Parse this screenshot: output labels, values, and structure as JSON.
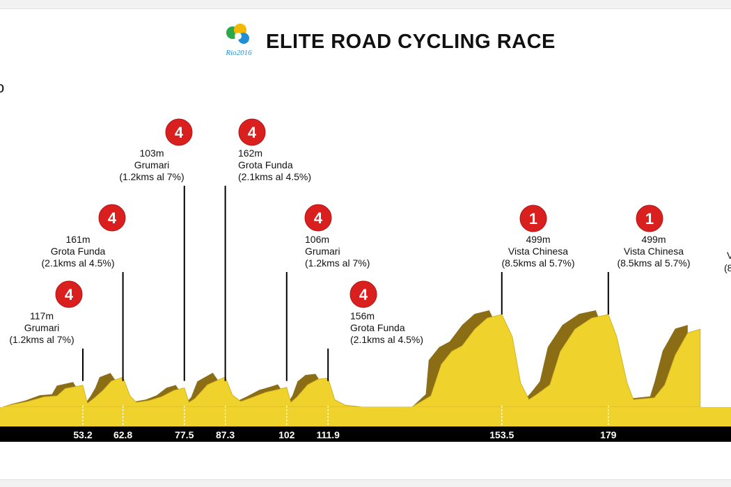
{
  "title": "ELITE ROAD CYCLING RACE",
  "logo": {
    "text": "Rio2016",
    "icon": "rio-2016-olympic-logo"
  },
  "side_fragment": "o",
  "colors": {
    "profile_fill": "#f0d22c",
    "climb_face": "#8a6d14",
    "category_badge": "#d9201f",
    "axis_bar": "#000000"
  },
  "chart_data": {
    "type": "area",
    "xlabel": "",
    "ylabel": "",
    "x_unit": "km",
    "y_unit": "m",
    "km_markers": [
      53.2,
      62.8,
      77.5,
      87.3,
      102,
      111.9,
      153.5,
      179
    ],
    "km_labels": [
      "53.2",
      "62.8",
      "77.5",
      "87.3",
      "102",
      "111.9",
      "153.5",
      "179"
    ],
    "profile": [
      {
        "km": 34,
        "alt": 0
      },
      {
        "km": 36,
        "alt": 12
      },
      {
        "km": 40,
        "alt": 30
      },
      {
        "km": 44,
        "alt": 55
      },
      {
        "km": 47,
        "alt": 60
      },
      {
        "km": 49,
        "alt": 100
      },
      {
        "km": 53.2,
        "alt": 117
      },
      {
        "km": 54.3,
        "alt": 20
      },
      {
        "km": 56,
        "alt": 50
      },
      {
        "km": 58,
        "alt": 90
      },
      {
        "km": 60,
        "alt": 140
      },
      {
        "km": 62.8,
        "alt": 161
      },
      {
        "km": 64.5,
        "alt": 60
      },
      {
        "km": 66,
        "alt": 25
      },
      {
        "km": 69,
        "alt": 35
      },
      {
        "km": 72,
        "alt": 55
      },
      {
        "km": 75,
        "alt": 90
      },
      {
        "km": 77.5,
        "alt": 103
      },
      {
        "km": 78.6,
        "alt": 25
      },
      {
        "km": 80,
        "alt": 45
      },
      {
        "km": 83,
        "alt": 120
      },
      {
        "km": 87.3,
        "alt": 162
      },
      {
        "km": 89,
        "alt": 65
      },
      {
        "km": 91,
        "alt": 30
      },
      {
        "km": 93.5,
        "alt": 50
      },
      {
        "km": 97,
        "alt": 80
      },
      {
        "km": 100,
        "alt": 95
      },
      {
        "km": 102,
        "alt": 106
      },
      {
        "km": 103,
        "alt": 25
      },
      {
        "km": 104.5,
        "alt": 55
      },
      {
        "km": 107,
        "alt": 120
      },
      {
        "km": 109.5,
        "alt": 150
      },
      {
        "km": 111.9,
        "alt": 156
      },
      {
        "km": 113.5,
        "alt": 40
      },
      {
        "km": 116,
        "alt": 10
      },
      {
        "km": 120,
        "alt": 0
      },
      {
        "km": 132,
        "alt": 0
      },
      {
        "km": 136.5,
        "alt": 60
      },
      {
        "km": 139,
        "alt": 230
      },
      {
        "km": 141.5,
        "alt": 300
      },
      {
        "km": 144,
        "alt": 330
      },
      {
        "km": 147,
        "alt": 420
      },
      {
        "km": 150,
        "alt": 480
      },
      {
        "km": 153.5,
        "alt": 499
      },
      {
        "km": 156,
        "alt": 380
      },
      {
        "km": 158,
        "alt": 130
      },
      {
        "km": 160,
        "alt": 40
      },
      {
        "km": 162,
        "alt": 70
      },
      {
        "km": 165,
        "alt": 120
      },
      {
        "km": 167.5,
        "alt": 300
      },
      {
        "km": 171,
        "alt": 420
      },
      {
        "km": 175,
        "alt": 480
      },
      {
        "km": 179,
        "alt": 499
      },
      {
        "km": 181,
        "alt": 380
      },
      {
        "km": 183.5,
        "alt": 130
      },
      {
        "km": 185,
        "alt": 40
      },
      {
        "km": 190,
        "alt": 50
      },
      {
        "km": 192.5,
        "alt": 120
      },
      {
        "km": 195,
        "alt": 280
      },
      {
        "km": 198,
        "alt": 400
      },
      {
        "km": 201,
        "alt": 420
      }
    ],
    "climbs": [
      {
        "km": 53.2,
        "category": "4",
        "alt_label": "117m",
        "name": "Grumari",
        "detail": "(1.2kms al 7%)",
        "tier": 3
      },
      {
        "km": 62.8,
        "category": "4",
        "alt_label": "161m",
        "name": "Grota Funda",
        "detail": "(2.1kms al 4.5%)",
        "tier": 2
      },
      {
        "km": 77.5,
        "category": "4",
        "alt_label": "103m",
        "name": "Grumari",
        "detail": "(1.2kms al 7%)",
        "tier": 0
      },
      {
        "km": 87.3,
        "category": "4",
        "alt_label": "162m",
        "name": "Grota Funda",
        "detail": "(2.1kms al 4.5%)",
        "tier": 0
      },
      {
        "km": 102,
        "category": "4",
        "alt_label": "106m",
        "name": "Grumari",
        "detail": "(1.2kms al 7%)",
        "tier": 2
      },
      {
        "km": 111.9,
        "category": "4",
        "alt_label": "156m",
        "name": "Grota Funda",
        "detail": "(2.1kms al 4.5%)",
        "tier": 3
      },
      {
        "km": 153.5,
        "category": "1",
        "alt_label": "499m",
        "name": "Vista Chinesa",
        "detail": "(8.5kms al 5.7%)",
        "tier": 1
      },
      {
        "km": 179,
        "category": "1",
        "alt_label": "499m",
        "name": "Vista Chinesa",
        "detail": "(8.5kms al 5.7%)",
        "tier": 1
      }
    ],
    "edge_fragment": {
      "text_1": "V",
      "text_2": "(8"
    }
  }
}
